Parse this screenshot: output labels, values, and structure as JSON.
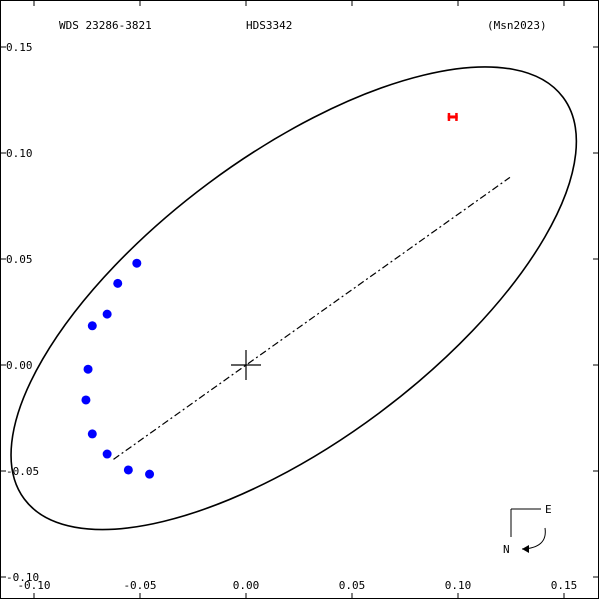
{
  "header": {
    "left": "WDS 23286-3821",
    "center": "HDS3342",
    "right": "(Msn2023)"
  },
  "compass": {
    "east": "E",
    "north": "N"
  },
  "chart_data": {
    "type": "scatter",
    "title": "",
    "xlabel": "",
    "ylabel": "",
    "xlim": [
      -0.1,
      0.16
    ],
    "ylim": [
      -0.1,
      0.16
    ],
    "x_ticks": [
      "-0.10",
      "-0.05",
      "0.00",
      "0.05",
      "0.10",
      "0.15"
    ],
    "y_ticks": [
      "-0.10",
      "-0.05",
      "0.00",
      "0.05",
      "0.10",
      "0.15"
    ],
    "x_tick_values": [
      -0.1,
      -0.05,
      0.0,
      0.05,
      0.1,
      0.15
    ],
    "y_tick_values": [
      -0.1,
      -0.05,
      0.0,
      0.05,
      0.1,
      0.15
    ],
    "grid": false,
    "orbit_ellipse": {
      "center": [
        0.0225,
        0.0315
      ],
      "semi_major": 0.1585,
      "semi_minor": 0.0675,
      "angle_deg": 36.7
    },
    "line_of_nodes": [
      [
        -0.0625,
        -0.0445
      ],
      [
        0.1245,
        0.0885
      ]
    ],
    "primary_star": [
      0.0,
      0.0
    ],
    "series": [
      {
        "marker": "blue-dot",
        "color": "#0000ff",
        "x": [
          -0.0515,
          -0.0605,
          -0.0655,
          -0.0725,
          -0.0745,
          -0.0755,
          -0.0725,
          -0.0655,
          -0.0555,
          -0.0455
        ],
        "y": [
          0.048,
          0.0385,
          0.024,
          0.0185,
          -0.002,
          -0.0165,
          -0.0325,
          -0.042,
          -0.0495,
          -0.0515
        ]
      },
      {
        "marker": "red-bar",
        "color": "#ff0000",
        "x": [
          0.0975
        ],
        "y": [
          0.117
        ]
      }
    ]
  }
}
